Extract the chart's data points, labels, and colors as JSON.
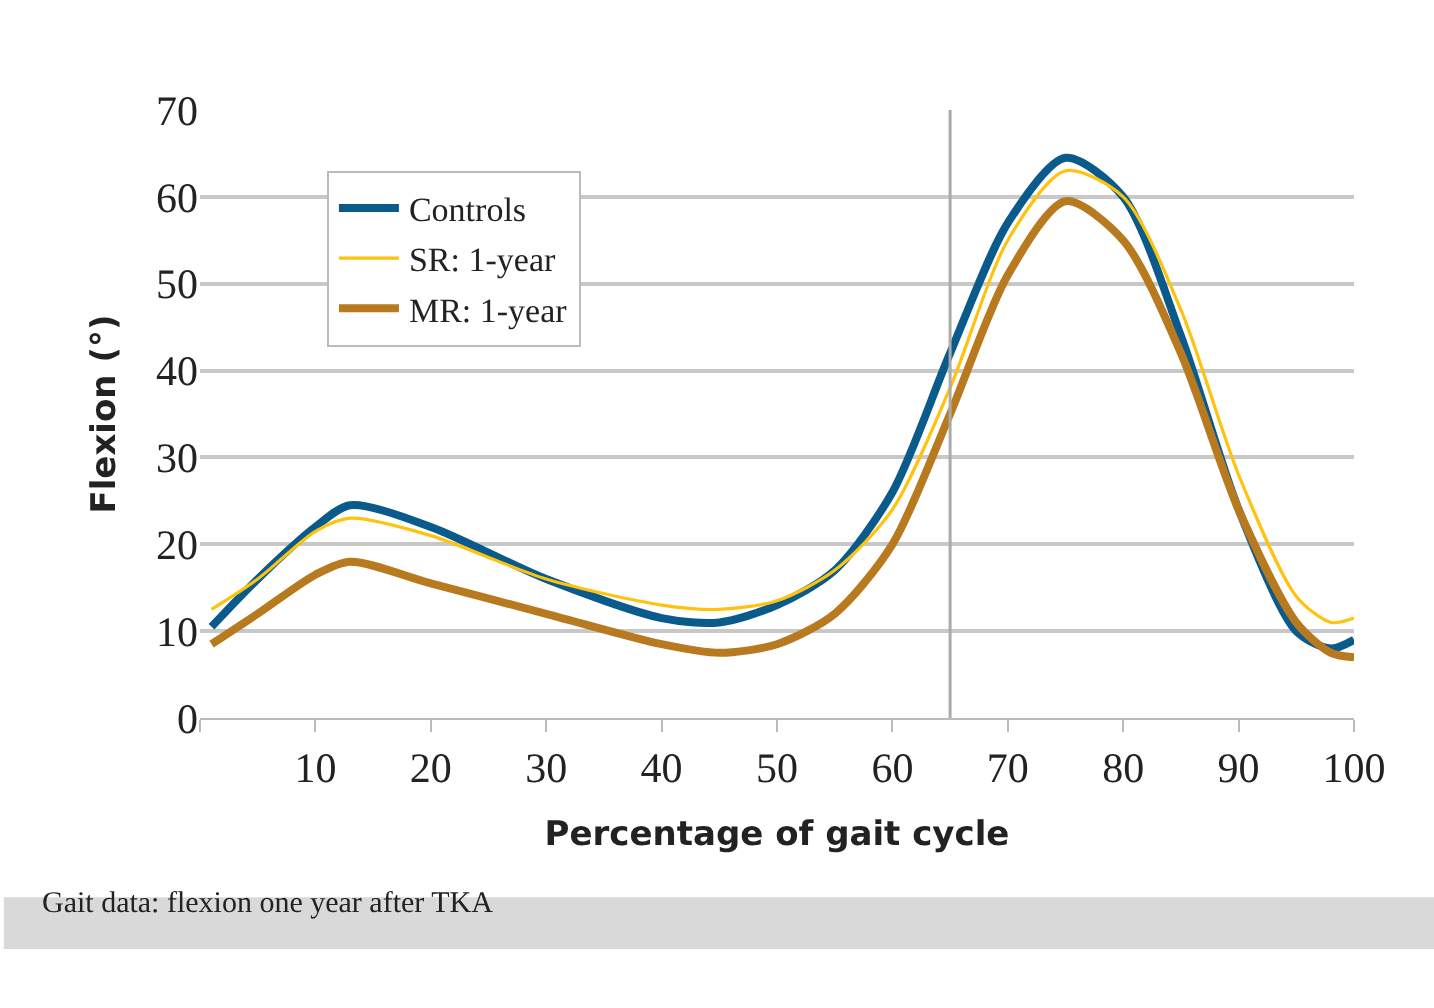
{
  "chart_data": {
    "type": "line",
    "xlabel": "Percentage of gait cycle",
    "ylabel": "Flexion (°)",
    "x": [
      1,
      5,
      10,
      13,
      20,
      30,
      40,
      45,
      50,
      55,
      60,
      65,
      70,
      75,
      80,
      85,
      90,
      95,
      98,
      100
    ],
    "series": [
      {
        "name": "Controls",
        "color": "#0a5a8c",
        "values": [
          10.5,
          16,
          22,
          24.5,
          22,
          16,
          11.5,
          11,
          13,
          17,
          26,
          42,
          57,
          64.5,
          60,
          44,
          24,
          10,
          8,
          9
        ]
      },
      {
        "name": "SR: 1-year",
        "color": "#ffc20e",
        "values": [
          12.5,
          16,
          21.5,
          23,
          21,
          16,
          13,
          12.5,
          13.5,
          17,
          24,
          38,
          55,
          63,
          60,
          47,
          28,
          14,
          11,
          11.5
        ]
      },
      {
        "name": "MR: 1-year",
        "color": "#b87a1e",
        "values": [
          8.5,
          12,
          16.5,
          18,
          15.5,
          12,
          8.5,
          7.5,
          8.5,
          12,
          20,
          35,
          51,
          59.5,
          55,
          42,
          24,
          11,
          7.5,
          7
        ]
      }
    ],
    "xlim": [
      0,
      100
    ],
    "xticks": [
      {
        "value": 0,
        "label": null
      },
      10,
      20,
      30,
      40,
      50,
      60,
      70,
      80,
      90,
      100
    ],
    "ylim": [
      0,
      70
    ],
    "yticks": [
      0,
      10,
      20,
      30,
      40,
      50,
      60,
      70
    ],
    "ref_lines": [
      {
        "axis": "x",
        "value": 65,
        "label": null,
        "color": "#aaaaaa"
      }
    ],
    "grid": "y",
    "legend": "top left",
    "marker": "none",
    "line_style": "solid",
    "annotations": [
      "Gait data: flexion one year after TKA"
    ]
  }
}
